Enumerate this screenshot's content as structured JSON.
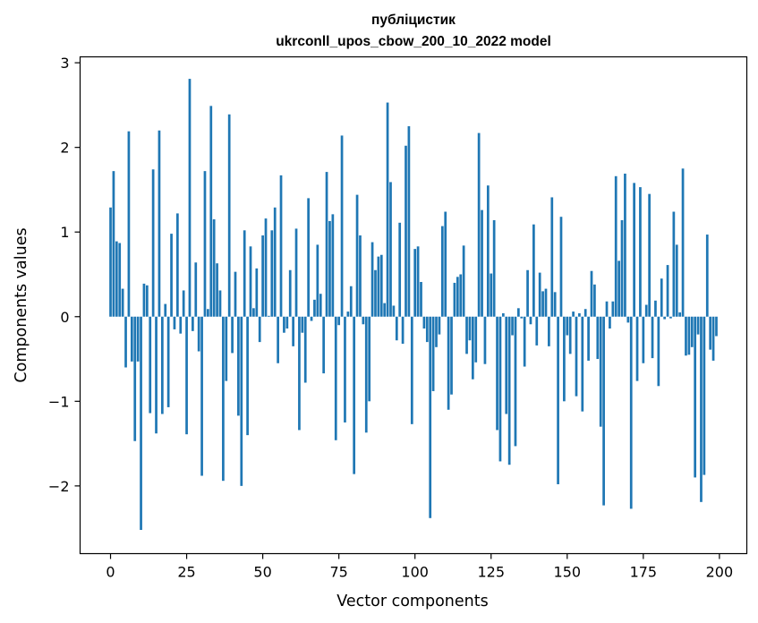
{
  "chart_data": {
    "type": "bar",
    "title": "публіцистик",
    "subtitle": "ukrconll_upos_cbow_200_10_2022 model",
    "xlabel": "Vector components",
    "ylabel": "Components values",
    "xlim": [
      -10,
      209
    ],
    "ylim": [
      -2.8,
      3.07
    ],
    "x_ticks": [
      0,
      25,
      50,
      75,
      100,
      125,
      150,
      175,
      200
    ],
    "y_ticks": [
      -2,
      -1,
      0,
      1,
      2,
      3
    ],
    "x_tick_labels": [
      "0",
      "25",
      "50",
      "75",
      "100",
      "125",
      "150",
      "175",
      "200"
    ],
    "y_tick_labels": [
      "−2",
      "−1",
      "0",
      "1",
      "2",
      "3"
    ],
    "bar_color": "#1f77b4",
    "grid": false,
    "x": [
      0,
      1,
      2,
      3,
      4,
      5,
      6,
      7,
      8,
      9,
      10,
      11,
      12,
      13,
      14,
      15,
      16,
      17,
      18,
      19,
      20,
      21,
      22,
      23,
      24,
      25,
      26,
      27,
      28,
      29,
      30,
      31,
      32,
      33,
      34,
      35,
      36,
      37,
      38,
      39,
      40,
      41,
      42,
      43,
      44,
      45,
      46,
      47,
      48,
      49,
      50,
      51,
      52,
      53,
      54,
      55,
      56,
      57,
      58,
      59,
      60,
      61,
      62,
      63,
      64,
      65,
      66,
      67,
      68,
      69,
      70,
      71,
      72,
      73,
      74,
      75,
      76,
      77,
      78,
      79,
      80,
      81,
      82,
      83,
      84,
      85,
      86,
      87,
      88,
      89,
      90,
      91,
      92,
      93,
      94,
      95,
      96,
      97,
      98,
      99,
      100,
      101,
      102,
      103,
      104,
      105,
      106,
      107,
      108,
      109,
      110,
      111,
      112,
      113,
      114,
      115,
      116,
      117,
      118,
      119,
      120,
      121,
      122,
      123,
      124,
      125,
      126,
      127,
      128,
      129,
      130,
      131,
      132,
      133,
      134,
      135,
      136,
      137,
      138,
      139,
      140,
      141,
      142,
      143,
      144,
      145,
      146,
      147,
      148,
      149,
      150,
      151,
      152,
      153,
      154,
      155,
      156,
      157,
      158,
      159,
      160,
      161,
      162,
      163,
      164,
      165,
      166,
      167,
      168,
      169,
      170,
      171,
      172,
      173,
      174,
      175,
      176,
      177,
      178,
      179,
      180,
      181,
      182,
      183,
      184,
      185,
      186,
      187,
      188,
      189,
      190,
      191,
      192,
      193,
      194,
      195,
      196,
      197,
      198,
      199
    ],
    "values": [
      1.29,
      1.72,
      0.89,
      0.87,
      0.33,
      -0.6,
      2.19,
      -0.53,
      -1.47,
      -0.53,
      -2.52,
      0.39,
      0.37,
      -1.14,
      1.74,
      -1.38,
      2.2,
      -1.15,
      0.15,
      -1.07,
      0.98,
      -0.15,
      1.22,
      -0.2,
      0.31,
      -1.39,
      2.81,
      -0.17,
      0.64,
      -0.41,
      -1.88,
      1.72,
      0.09,
      2.49,
      1.15,
      0.63,
      0.31,
      -1.94,
      -0.76,
      2.39,
      -0.43,
      0.53,
      -1.17,
      -2.0,
      1.02,
      -1.4,
      0.83,
      0.1,
      0.57,
      -0.3,
      0.96,
      1.16,
      0.01,
      1.02,
      1.29,
      -0.55,
      1.67,
      -0.19,
      -0.14,
      0.55,
      -0.35,
      1.04,
      -1.34,
      -0.19,
      -0.78,
      1.4,
      -0.05,
      0.2,
      0.85,
      0.27,
      -0.67,
      1.71,
      1.13,
      1.21,
      -1.46,
      -0.1,
      2.14,
      -1.25,
      0.06,
      0.36,
      -1.86,
      1.44,
      0.96,
      -0.09,
      -1.37,
      -1.0,
      0.88,
      0.55,
      0.71,
      0.73,
      0.16,
      2.53,
      1.59,
      0.13,
      -0.28,
      1.11,
      -0.32,
      2.02,
      2.25,
      -1.27,
      0.8,
      0.83,
      0.41,
      -0.14,
      -0.3,
      -2.38,
      -0.88,
      -0.36,
      -0.21,
      1.07,
      1.24,
      -1.1,
      -0.92,
      0.4,
      0.47,
      0.5,
      0.84,
      -0.44,
      -0.28,
      -0.74,
      -0.54,
      2.17,
      1.26,
      -0.56,
      1.55,
      0.51,
      1.14,
      -1.34,
      -1.71,
      0.04,
      -1.15,
      -1.75,
      -0.22,
      -1.53,
      0.1,
      -0.02,
      -0.59,
      0.55,
      -0.09,
      1.09,
      -0.34,
      0.52,
      0.3,
      0.33,
      -0.35,
      1.41,
      0.29,
      -1.98,
      1.18,
      -1.0,
      -0.22,
      -0.44,
      0.06,
      -0.94,
      0.04,
      -1.12,
      0.09,
      -0.52,
      0.54,
      0.38,
      -0.5,
      -1.3,
      -2.23,
      0.18,
      -0.14,
      0.18,
      1.66,
      0.66,
      1.14,
      1.69,
      -0.07,
      -2.27,
      1.58,
      -0.76,
      1.53,
      -0.55,
      0.14,
      1.45,
      -0.49,
      0.19,
      -0.82,
      0.45,
      -0.03,
      0.61,
      -0.02,
      1.24,
      0.85,
      0.05,
      1.75,
      -0.46,
      -0.45,
      -0.36,
      -1.9,
      -0.21,
      -2.19,
      -1.87,
      0.97,
      -0.39,
      -0.52,
      -0.23
    ]
  }
}
